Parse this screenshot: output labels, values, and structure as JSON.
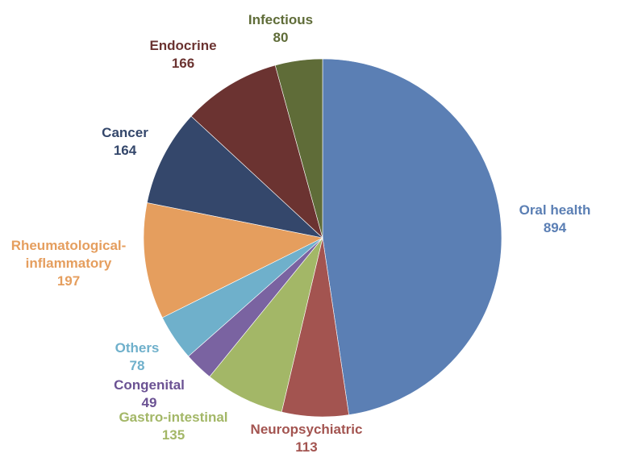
{
  "chart_data": {
    "type": "pie",
    "title": "",
    "start": "12 o'clock",
    "direction": "clockwise",
    "slices": [
      {
        "label": "Oral health",
        "value": 894,
        "color": "#5B7FB4",
        "label_color": "#5B7FB4",
        "key": "oral-health"
      },
      {
        "label": "Neuropsychiatric",
        "value": 113,
        "color": "#A35450",
        "label_color": "#A35450",
        "key": "neuropsychiatric"
      },
      {
        "label": "Gastro-intestinal",
        "value": 135,
        "color": "#A3B767",
        "label_color": "#A3B767",
        "key": "gastro-intestinal"
      },
      {
        "label": "Congenital",
        "value": 49,
        "color": "#7A63A1",
        "label_color": "#6B5293",
        "key": "congenital"
      },
      {
        "label": "Others",
        "value": 78,
        "color": "#6FB0CB",
        "label_color": "#6FB0CB",
        "key": "others"
      },
      {
        "label": "Rheumatological-inflammatory",
        "label_lines": [
          "Rheumatological-",
          "inflammatory"
        ],
        "value": 197,
        "color": "#E59E5E",
        "label_color": "#E59E5E",
        "key": "rheumatological-inflammatory"
      },
      {
        "label": "Cancer",
        "value": 164,
        "color": "#34476B",
        "label_color": "#34476B",
        "key": "cancer"
      },
      {
        "label": "Endocrine",
        "value": 166,
        "color": "#6B3331",
        "label_color": "#6B3331",
        "key": "endocrine"
      },
      {
        "label": "Infectious",
        "value": 80,
        "color": "#5F6C38",
        "label_color": "#5F6C38",
        "key": "infectious"
      }
    ]
  }
}
